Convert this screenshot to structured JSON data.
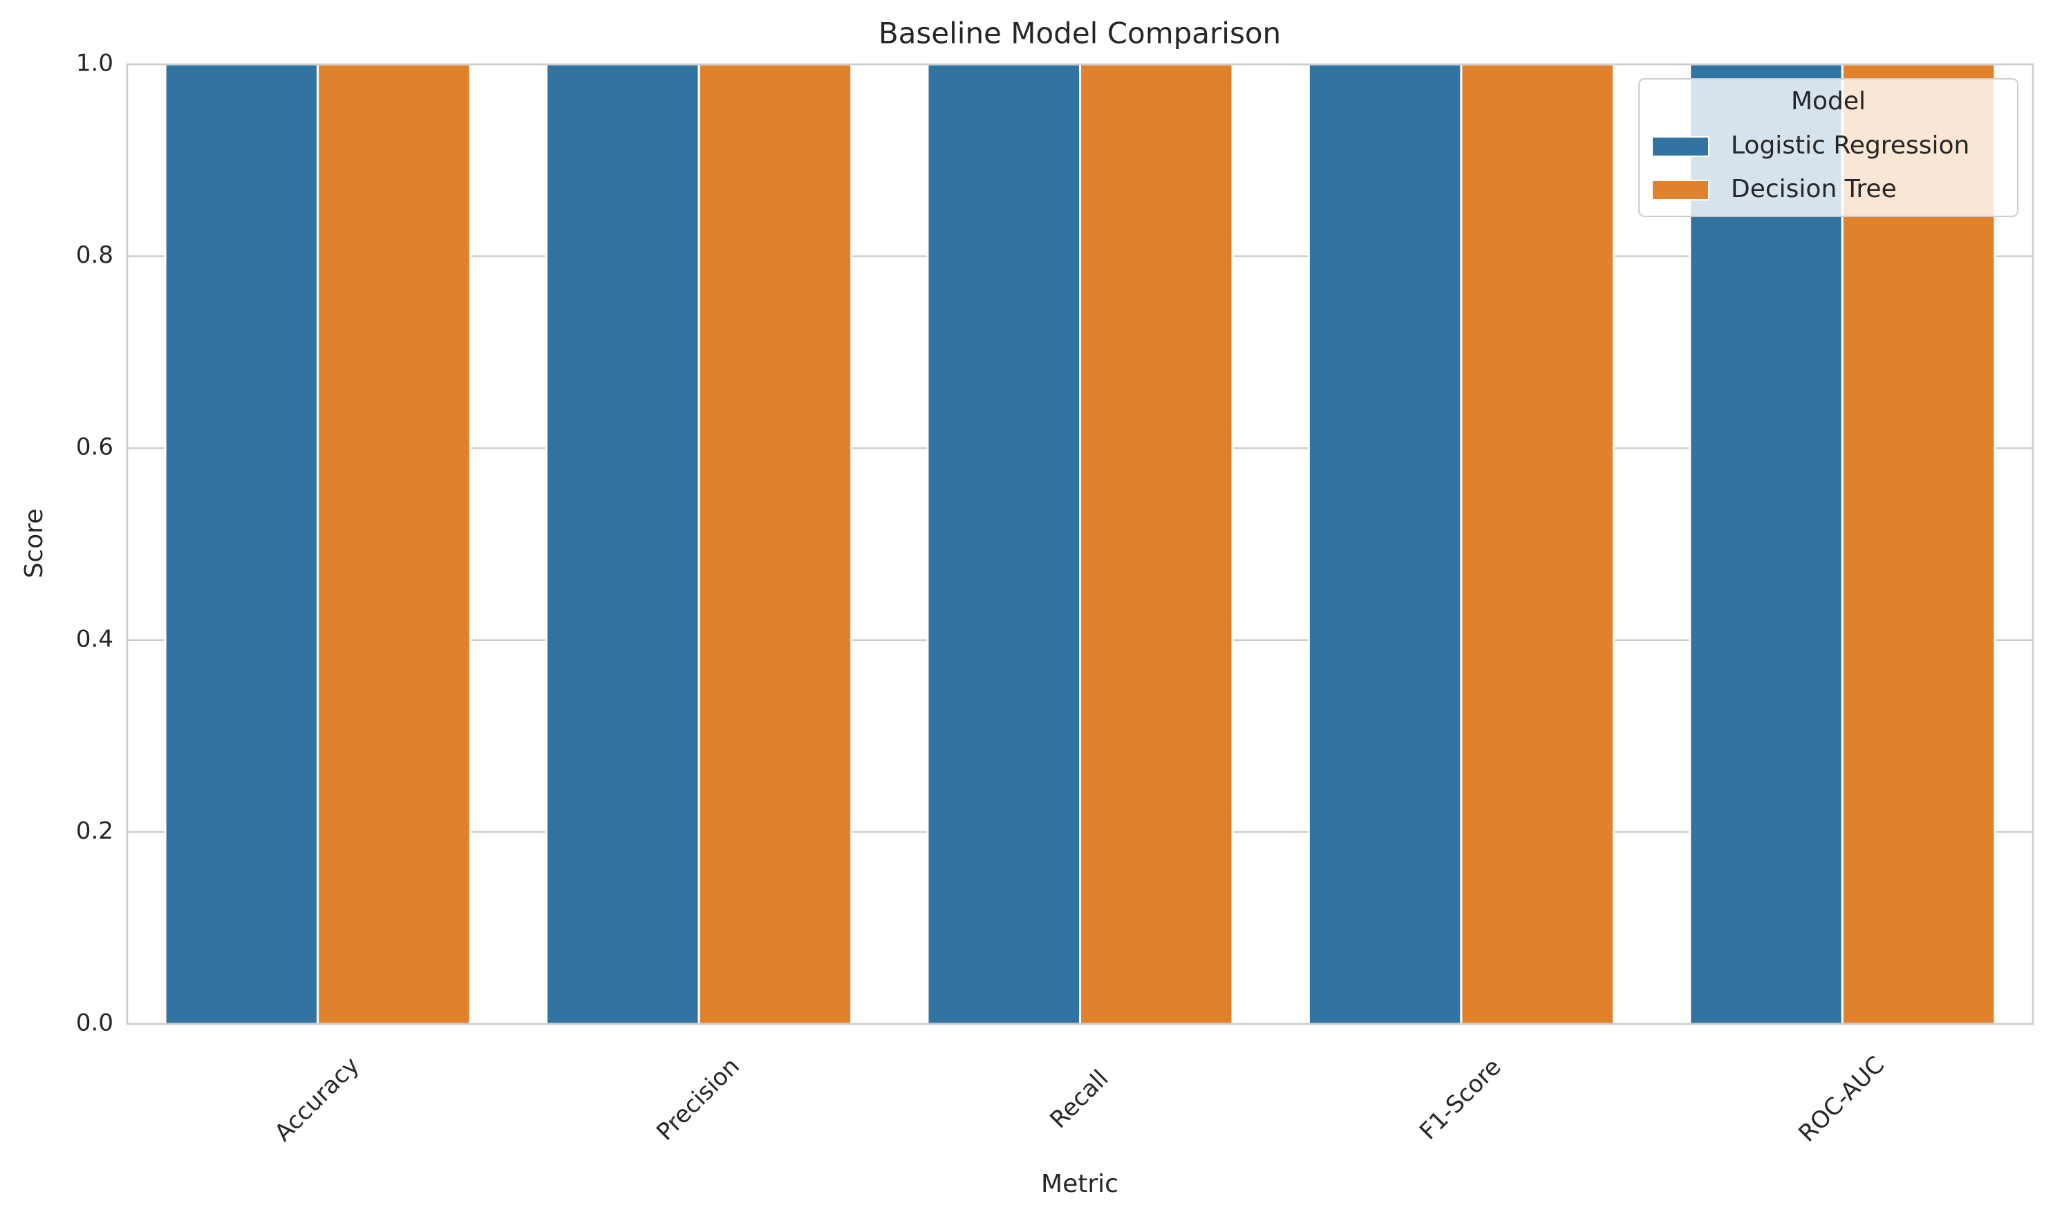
{
  "chart_data": {
    "type": "bar",
    "title": "Baseline Model Comparison",
    "x_label": "Metric",
    "y_label": "Score",
    "categories": [
      "Accuracy",
      "Precision",
      "Recall",
      "F1-Score",
      "ROC-AUC"
    ],
    "series": [
      {
        "name": "Logistic Regression",
        "color": "#3274a1",
        "values": [
          1.0,
          1.0,
          1.0,
          1.0,
          1.0
        ]
      },
      {
        "name": "Decision Tree",
        "color": "#e1812c",
        "values": [
          1.0,
          1.0,
          1.0,
          1.0,
          1.0
        ]
      }
    ],
    "legend_title": "Model",
    "legend_position": "upper right",
    "ylim": [
      0,
      1.0
    ],
    "yticks": [
      {
        "value": 0,
        "label": "0.0"
      },
      0.2,
      0.4,
      0.6,
      0.8,
      {
        "value": 1.0,
        "label": "1.0"
      }
    ],
    "grid": true
  }
}
